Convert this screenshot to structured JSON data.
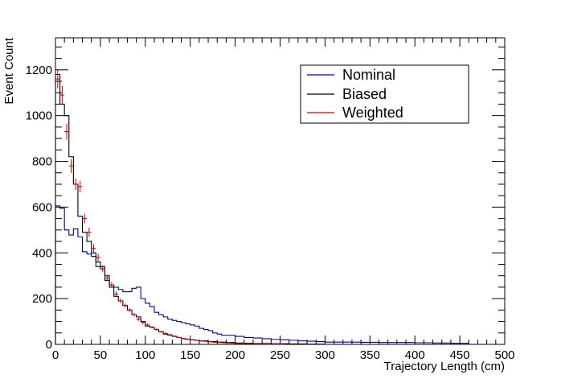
{
  "chart_data": {
    "type": "line",
    "title": "",
    "xlabel": "Trajectory Length (cm)",
    "ylabel": "Event Count",
    "xlim": [
      0,
      500
    ],
    "ylim": [
      0,
      1340
    ],
    "x_ticks": [
      0,
      50,
      100,
      150,
      200,
      250,
      300,
      350,
      400,
      450,
      500
    ],
    "y_ticks": [
      0,
      200,
      400,
      600,
      800,
      1000,
      1200
    ],
    "grid": false,
    "legend_position": "top-right",
    "bin_width": 5,
    "series": [
      {
        "name": "Nominal",
        "style": "histogram-step",
        "color": "#000099",
        "bin_edges_x": [
          0,
          5,
          10,
          15,
          20,
          25,
          30,
          35,
          40,
          45,
          50,
          55,
          60,
          65,
          70,
          75,
          80,
          85,
          90,
          95,
          100,
          105,
          110,
          115,
          120,
          125,
          130,
          135,
          140,
          145,
          150,
          155,
          160,
          165,
          170,
          175,
          180,
          185,
          190,
          195,
          200,
          210,
          220,
          230,
          240,
          250,
          260,
          270,
          280,
          290,
          300,
          320,
          340,
          360,
          380,
          400,
          420,
          440,
          460
        ],
        "values": [
          605,
          595,
          500,
          478,
          505,
          470,
          405,
          395,
          385,
          340,
          330,
          300,
          260,
          250,
          240,
          230,
          230,
          245,
          250,
          200,
          180,
          165,
          140,
          130,
          120,
          110,
          105,
          100,
          95,
          90,
          85,
          80,
          70,
          65,
          60,
          50,
          45,
          40,
          40,
          40,
          35,
          30,
          28,
          25,
          22,
          20,
          18,
          15,
          14,
          12,
          10,
          10,
          9,
          8,
          8,
          7,
          6,
          5
        ]
      },
      {
        "name": "Biased",
        "style": "histogram-step",
        "color": "#000000",
        "bin_edges_x": [
          0,
          5,
          10,
          15,
          20,
          25,
          30,
          35,
          40,
          45,
          50,
          55,
          60,
          65,
          70,
          75,
          80,
          85,
          90,
          95,
          100,
          105,
          110,
          115,
          120,
          125,
          130,
          135,
          140,
          145,
          150,
          155,
          160,
          170,
          180,
          190,
          200,
          210,
          220,
          240,
          260,
          280,
          300
        ],
        "values": [
          1180,
          1050,
          1000,
          820,
          700,
          560,
          490,
          450,
          400,
          360,
          340,
          280,
          250,
          210,
          190,
          170,
          150,
          130,
          120,
          100,
          80,
          75,
          65,
          55,
          45,
          40,
          35,
          30,
          25,
          22,
          20,
          18,
          15,
          12,
          10,
          8,
          6,
          5,
          4,
          3,
          2,
          1
        ]
      },
      {
        "name": "Weighted",
        "style": "points-with-error-bars",
        "color": "#cc0000",
        "x": [
          2.5,
          7.5,
          12.5,
          17.5,
          22.5,
          27.5,
          32.5,
          37.5,
          42.5,
          47.5,
          52.5,
          57.5,
          62.5,
          67.5,
          72.5,
          77.5,
          82.5,
          87.5,
          92.5,
          97.5,
          102.5,
          107.5,
          112.5,
          117.5,
          122.5,
          127.5,
          132.5,
          137.5,
          142.5,
          147.5,
          152.5,
          157.5,
          162.5,
          167.5,
          172.5,
          177.5,
          182.5,
          187.5,
          192.5,
          197.5,
          202.5,
          207.5,
          212.5,
          217.5,
          222.5,
          227.5,
          232.5,
          237.5,
          242.5,
          247.5,
          252.5
        ],
        "y": [
          1160,
          1090,
          930,
          780,
          700,
          690,
          550,
          490,
          420,
          380,
          330,
          290,
          260,
          220,
          190,
          170,
          150,
          130,
          110,
          95,
          85,
          75,
          65,
          55,
          48,
          42,
          36,
          30,
          26,
          22,
          20,
          17,
          15,
          13,
          11,
          9,
          8,
          7,
          6,
          5,
          4,
          4,
          3,
          3,
          2,
          2,
          2,
          1,
          1,
          1,
          1
        ],
        "err": [
          40,
          40,
          35,
          30,
          25,
          25,
          20,
          20,
          18,
          16,
          15,
          14,
          12,
          11,
          10,
          9,
          8,
          8,
          7,
          6,
          6,
          5,
          5,
          4,
          4,
          4,
          3,
          3,
          3,
          3,
          2,
          2,
          2,
          2,
          2,
          2,
          1,
          1,
          1,
          1,
          1,
          1,
          1,
          1,
          1,
          1,
          1,
          1,
          1,
          1,
          1
        ]
      }
    ]
  }
}
